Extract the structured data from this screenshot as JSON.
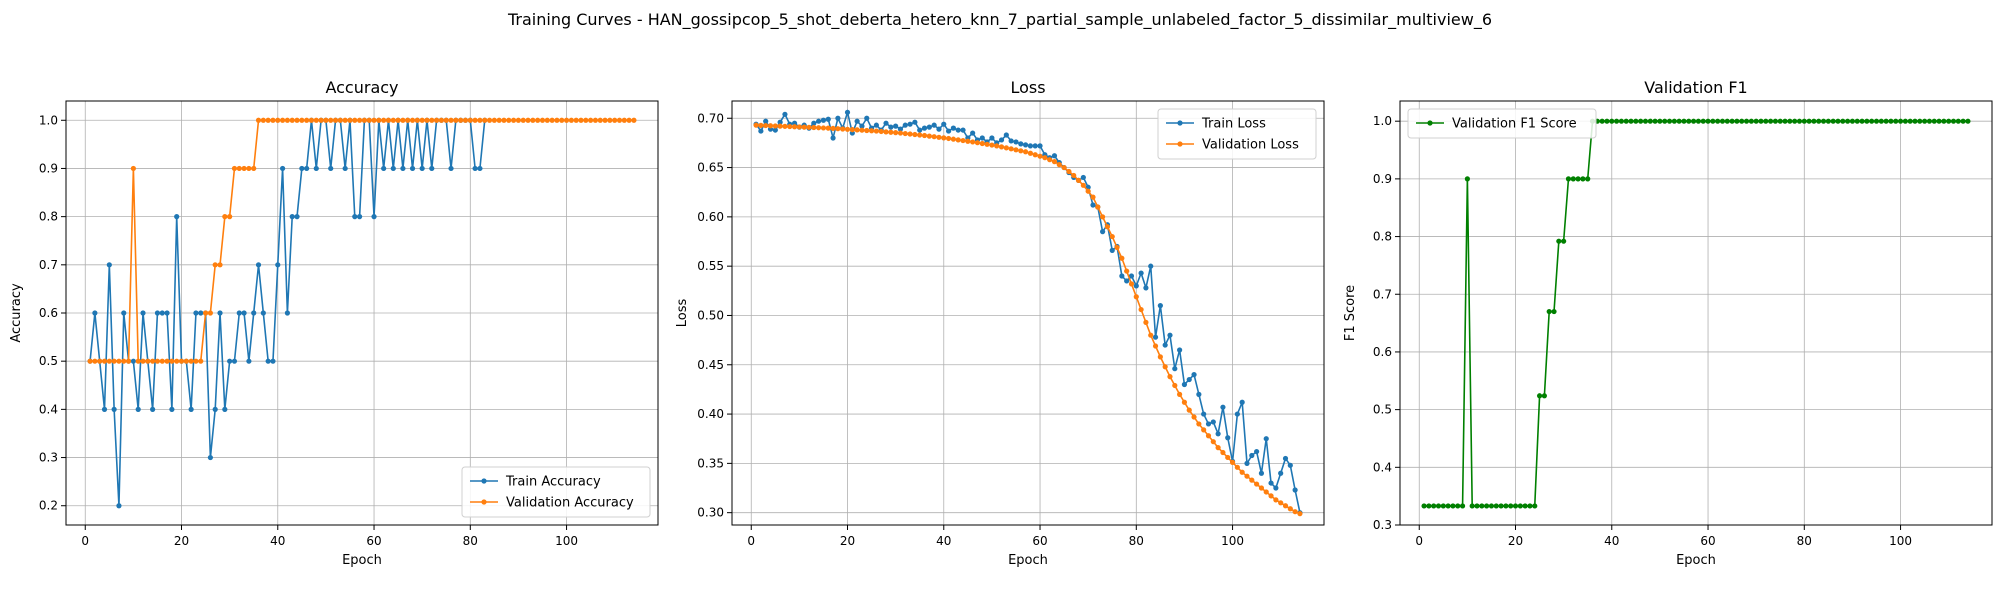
{
  "figure": {
    "suptitle": "Training Curves - HAN_gossipcop_5_shot_deberta_hetero_knn_7_partial_sample_unlabeled_factor_5_dissimilar_multiview_6"
  },
  "chart_data": [
    {
      "type": "line",
      "title": "Accuracy",
      "xlabel": "Epoch",
      "ylabel": "Accuracy",
      "xlim": [
        -4,
        119
      ],
      "ylim": [
        0.16,
        1.04
      ],
      "xticks": [
        0,
        20,
        40,
        60,
        80,
        100
      ],
      "yticks": [
        0.2,
        0.3,
        0.4,
        0.5,
        0.6,
        0.7,
        0.8,
        0.9,
        1.0
      ],
      "ytick_decimals": 1,
      "grid": true,
      "legend_position": "lower-right",
      "x_start": 1,
      "series": [
        {
          "name": "Train Accuracy",
          "color": "#1f77b4",
          "values": [
            0.5,
            0.6,
            0.5,
            0.4,
            0.7,
            0.4,
            0.2,
            0.6,
            0.5,
            0.5,
            0.4,
            0.6,
            0.5,
            0.4,
            0.6,
            0.6,
            0.6,
            0.4,
            0.8,
            0.5,
            0.5,
            0.4,
            0.6,
            0.6,
            0.6,
            0.3,
            0.4,
            0.6,
            0.4,
            0.5,
            0.5,
            0.6,
            0.6,
            0.5,
            0.6,
            0.7,
            0.6,
            0.5,
            0.5,
            0.7,
            0.9,
            0.6,
            0.8,
            0.8,
            0.9,
            0.9,
            1.0,
            0.9,
            1.0,
            1.0,
            0.9,
            1.0,
            1.0,
            0.9,
            1.0,
            0.8,
            0.8,
            1.0,
            1.0,
            0.8,
            1.0,
            0.9,
            1.0,
            0.9,
            1.0,
            0.9,
            1.0,
            0.9,
            1.0,
            0.9,
            1.0,
            0.9,
            1.0,
            1.0,
            1.0,
            0.9,
            1.0,
            1.0,
            1.0,
            1.0,
            0.9,
            0.9,
            1.0
          ]
        },
        {
          "name": "Validation Accuracy",
          "color": "#ff7f0e",
          "values": [
            0.5,
            0.5,
            0.5,
            0.5,
            0.5,
            0.5,
            0.5,
            0.5,
            0.5,
            0.9,
            0.5,
            0.5,
            0.5,
            0.5,
            0.5,
            0.5,
            0.5,
            0.5,
            0.5,
            0.5,
            0.5,
            0.5,
            0.5,
            0.5,
            0.6,
            0.6,
            0.7,
            0.7,
            0.8,
            0.8,
            0.9,
            0.9,
            0.9,
            0.9,
            0.9,
            1.0,
            1.0,
            1.0,
            1.0,
            1.0,
            1.0,
            1.0,
            1.0,
            1.0,
            1.0,
            1.0,
            1.0,
            1.0,
            1.0,
            1.0,
            1.0,
            1.0,
            1.0,
            1.0,
            1.0,
            1.0,
            1.0,
            1.0,
            1.0,
            1.0,
            1.0,
            1.0,
            1.0,
            1.0,
            1.0,
            1.0,
            1.0,
            1.0,
            1.0,
            1.0,
            1.0,
            1.0,
            1.0,
            1.0,
            1.0,
            1.0,
            1.0,
            1.0,
            1.0,
            1.0,
            1.0,
            1.0,
            1.0,
            1.0,
            1.0,
            1.0,
            1.0,
            1.0,
            1.0,
            1.0,
            1.0,
            1.0,
            1.0,
            1.0,
            1.0,
            1.0,
            1.0,
            1.0,
            1.0,
            1.0,
            1.0,
            1.0,
            1.0,
            1.0,
            1.0,
            1.0,
            1.0,
            1.0,
            1.0,
            1.0,
            1.0,
            1.0,
            1.0,
            1.0
          ]
        }
      ]
    },
    {
      "type": "line",
      "title": "Loss",
      "xlabel": "Epoch",
      "ylabel": "Loss",
      "xlim": [
        -4,
        119
      ],
      "ylim": [
        0.2875,
        0.7175
      ],
      "xticks": [
        0,
        20,
        40,
        60,
        80,
        100
      ],
      "yticks": [
        0.3,
        0.35,
        0.4,
        0.45,
        0.5,
        0.55,
        0.6,
        0.65,
        0.7
      ],
      "ytick_decimals": 2,
      "grid": true,
      "legend_position": "upper-right",
      "x_start": 1,
      "series": [
        {
          "name": "Train Loss",
          "color": "#1f77b4",
          "values": [
            0.694,
            0.687,
            0.697,
            0.689,
            0.688,
            0.696,
            0.704,
            0.694,
            0.695,
            0.691,
            0.693,
            0.69,
            0.695,
            0.697,
            0.698,
            0.699,
            0.68,
            0.7,
            0.69,
            0.706,
            0.685,
            0.697,
            0.692,
            0.7,
            0.69,
            0.693,
            0.688,
            0.695,
            0.691,
            0.692,
            0.689,
            0.693,
            0.694,
            0.696,
            0.688,
            0.69,
            0.691,
            0.693,
            0.689,
            0.694,
            0.687,
            0.69,
            0.688,
            0.688,
            0.68,
            0.685,
            0.678,
            0.68,
            0.676,
            0.68,
            0.675,
            0.678,
            0.683,
            0.677,
            0.676,
            0.674,
            0.673,
            0.672,
            0.672,
            0.672,
            0.663,
            0.66,
            0.662,
            0.655,
            0.65,
            0.645,
            0.64,
            0.637,
            0.64,
            0.63,
            0.612,
            0.61,
            0.585,
            0.592,
            0.566,
            0.57,
            0.54,
            0.535,
            0.54,
            0.53,
            0.543,
            0.528,
            0.55,
            0.478,
            0.51,
            0.47,
            0.48,
            0.446,
            0.465,
            0.43,
            0.435,
            0.44,
            0.42,
            0.4,
            0.39,
            0.392,
            0.38,
            0.407,
            0.376,
            0.352,
            0.4,
            0.412,
            0.35,
            0.358,
            0.362,
            0.34,
            0.375,
            0.33,
            0.325,
            0.34,
            0.355,
            0.348,
            0.323,
            0.3
          ]
        },
        {
          "name": "Validation Loss",
          "color": "#ff7f0e",
          "values": [
            0.693,
            0.6928,
            0.6926,
            0.6924,
            0.6922,
            0.692,
            0.6918,
            0.6916,
            0.6914,
            0.6912,
            0.691,
            0.6908,
            0.6906,
            0.6904,
            0.6902,
            0.69,
            0.6897,
            0.6894,
            0.6891,
            0.6888,
            0.6885,
            0.6882,
            0.6879,
            0.6876,
            0.6873,
            0.687,
            0.6866,
            0.6862,
            0.6858,
            0.6854,
            0.685,
            0.6845,
            0.684,
            0.6835,
            0.683,
            0.6825,
            0.6819,
            0.6813,
            0.6807,
            0.6801,
            0.6795,
            0.6788,
            0.6781,
            0.6774,
            0.6767,
            0.676,
            0.6752,
            0.6744,
            0.6736,
            0.6728,
            0.672,
            0.671,
            0.67,
            0.669,
            0.668,
            0.667,
            0.666,
            0.6645,
            0.663,
            0.6615,
            0.66,
            0.658,
            0.656,
            0.653,
            0.65,
            0.646,
            0.642,
            0.637,
            0.632,
            0.626,
            0.62,
            0.61,
            0.6,
            0.59,
            0.58,
            0.569,
            0.558,
            0.545,
            0.532,
            0.519,
            0.506,
            0.493,
            0.48,
            0.469,
            0.458,
            0.448,
            0.438,
            0.429,
            0.42,
            0.412,
            0.404,
            0.397,
            0.39,
            0.384,
            0.378,
            0.372,
            0.366,
            0.361,
            0.356,
            0.351,
            0.346,
            0.341,
            0.337,
            0.333,
            0.329,
            0.325,
            0.321,
            0.317,
            0.313,
            0.31,
            0.307,
            0.304,
            0.301,
            0.299
          ]
        }
      ]
    },
    {
      "type": "line",
      "title": "Validation F1",
      "xlabel": "Epoch",
      "ylabel": "F1 Score",
      "xlim": [
        -4,
        119
      ],
      "ylim": [
        0.3,
        1.035
      ],
      "xticks": [
        0,
        20,
        40,
        60,
        80,
        100
      ],
      "yticks": [
        0.3,
        0.4,
        0.5,
        0.6,
        0.7,
        0.8,
        0.9,
        1.0
      ],
      "ytick_decimals": 1,
      "grid": true,
      "legend_position": "upper-left",
      "x_start": 1,
      "series": [
        {
          "name": "Validation F1 Score",
          "color": "#008000",
          "values": [
            0.333,
            0.333,
            0.333,
            0.333,
            0.333,
            0.333,
            0.333,
            0.333,
            0.333,
            0.9,
            0.333,
            0.333,
            0.333,
            0.333,
            0.333,
            0.333,
            0.333,
            0.333,
            0.333,
            0.333,
            0.333,
            0.333,
            0.333,
            0.333,
            0.524,
            0.524,
            0.67,
            0.67,
            0.792,
            0.792,
            0.9,
            0.9,
            0.9,
            0.9,
            0.9,
            1.0,
            1.0,
            1.0,
            1.0,
            1.0,
            1.0,
            1.0,
            1.0,
            1.0,
            1.0,
            1.0,
            1.0,
            1.0,
            1.0,
            1.0,
            1.0,
            1.0,
            1.0,
            1.0,
            1.0,
            1.0,
            1.0,
            1.0,
            1.0,
            1.0,
            1.0,
            1.0,
            1.0,
            1.0,
            1.0,
            1.0,
            1.0,
            1.0,
            1.0,
            1.0,
            1.0,
            1.0,
            1.0,
            1.0,
            1.0,
            1.0,
            1.0,
            1.0,
            1.0,
            1.0,
            1.0,
            1.0,
            1.0,
            1.0,
            1.0,
            1.0,
            1.0,
            1.0,
            1.0,
            1.0,
            1.0,
            1.0,
            1.0,
            1.0,
            1.0,
            1.0,
            1.0,
            1.0,
            1.0,
            1.0,
            1.0,
            1.0,
            1.0,
            1.0,
            1.0,
            1.0,
            1.0,
            1.0,
            1.0,
            1.0,
            1.0,
            1.0,
            1.0,
            1.0
          ]
        }
      ]
    }
  ]
}
